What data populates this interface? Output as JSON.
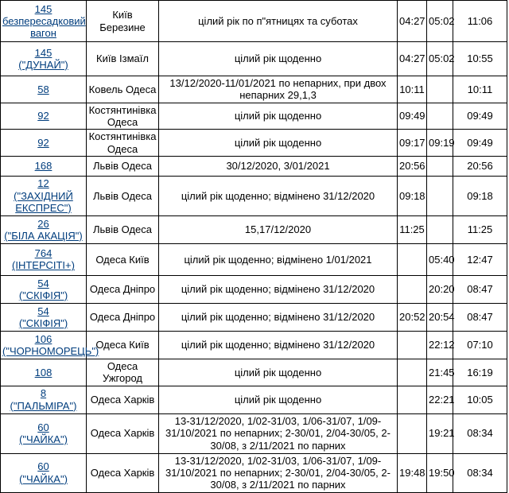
{
  "colors": {
    "link": "#003d7d",
    "border": "#000000",
    "background": "#ffffff",
    "text": "#000000"
  },
  "table": {
    "description": "train timetable fragment",
    "rows": [
      {
        "number": "145",
        "name": "безпересадковий вагон",
        "route": "Київ Березине",
        "schedule": "цілий рік по п\"ятницях та суботах",
        "t1": "04:27",
        "t2": "05:02",
        "t3": "11:06"
      },
      {
        "number": "145",
        "name": "(\"ДУНАЙ\")",
        "route": "Київ Ізмаїл",
        "schedule": "цілий рік щоденно",
        "t1": "04:27",
        "t2": "05:02",
        "t3": "10:55"
      },
      {
        "number": "58",
        "name": "",
        "route": "Ковель Одеса",
        "schedule": "13/12/2020-11/01/2021 по непарних, при двох непарних 29,1,3",
        "t1": "10:11",
        "t2": "",
        "t3": "10:11"
      },
      {
        "number": "92",
        "name": "",
        "route": "Костянтинівка Одеса",
        "schedule": "цілий рік щоденно",
        "t1": "09:49",
        "t2": "",
        "t3": "09:49"
      },
      {
        "number": "92",
        "name": "",
        "route": "Костянтинівка Одеса",
        "schedule": "цілий рік щоденно",
        "t1": "09:17",
        "t2": "09:19",
        "t3": "09:49"
      },
      {
        "number": "168",
        "name": "",
        "route": "Львів Одеса",
        "schedule": "30/12/2020, 3/01/2021",
        "t1": "20:56",
        "t2": "",
        "t3": "20:56"
      },
      {
        "number": "12",
        "name": "(\"ЗАХІДНИЙ ЕКСПРЕС\")",
        "route": "Львів Одеса",
        "schedule": "цілий рік щоденно; відмінено 31/12/2020",
        "t1": "09:18",
        "t2": "",
        "t3": "09:18"
      },
      {
        "number": "26",
        "name": "(\"БІЛА АКАЦІЯ\")",
        "route": "Львів Одеса",
        "schedule": "15,17/12/2020",
        "t1": "11:25",
        "t2": "",
        "t3": "11:25"
      },
      {
        "number": "764",
        "name": "(ІНТЕРСІТІ+)",
        "route": "Одеса Київ",
        "schedule": "цілий рік щоденно; відмінено 1/01/2021",
        "t1": "",
        "t2": "05:40",
        "t3": "12:47"
      },
      {
        "number": "54",
        "name": "(\"СКІФІЯ\")",
        "route": "Одеса Дніпро",
        "schedule": "цілий рік щоденно; відмінено 31/12/2020",
        "t1": "",
        "t2": "20:20",
        "t3": "08:47"
      },
      {
        "number": "54",
        "name": "(\"СКІФІЯ\")",
        "route": "Одеса Дніпро",
        "schedule": "цілий рік щоденно; відмінено 31/12/2020",
        "t1": "20:52",
        "t2": "20:54",
        "t3": "08:47"
      },
      {
        "number": "106",
        "name": "(\"ЧОРНОМОРЕЦЬ\")",
        "route": "Одеса Київ",
        "schedule": "цілий рік щоденно; відмінено 31/12/2020",
        "t1": "",
        "t2": "22:12",
        "t3": "07:10"
      },
      {
        "number": "108",
        "name": "",
        "route": "Одеса Ужгород",
        "schedule": "цілий рік щоденно",
        "t1": "",
        "t2": "21:45",
        "t3": "16:19"
      },
      {
        "number": "8",
        "name": "(\"ПАЛЬМІРА\")",
        "route": "Одеса Харків",
        "schedule": "цілий рік щоденно",
        "t1": "",
        "t2": "22:21",
        "t3": "10:05"
      },
      {
        "number": "60",
        "name": "(\"ЧАЙКА\")",
        "route": "Одеса Харків",
        "schedule": "13-31/12/2020, 1/02-31/03, 1/06-31/07, 1/09-31/10/2021 по непарних; 2-30/01, 2/04-30/05, 2-30/08, з 2/11/2021 по парних",
        "t1": "",
        "t2": "19:21",
        "t3": "08:34"
      },
      {
        "number": "60",
        "name": "(\"ЧАЙКА\")",
        "route": "Одеса Харків",
        "schedule": "13-31/12/2020, 1/02-31/03, 1/06-31/07, 1/09-31/10/2021 по непарних; 2-30/01, 2/04-30/05, 2-30/08, з 2/11/2021 по парних",
        "t1": "19:48",
        "t2": "19:50",
        "t3": "08:34"
      }
    ]
  }
}
